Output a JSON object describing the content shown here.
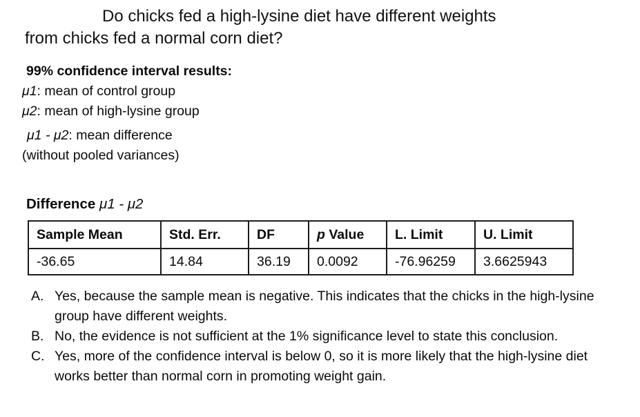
{
  "question": {
    "line1": "Do chicks fed a high-lysine diet have different weights",
    "line2": "from chicks fed a normal corn diet?"
  },
  "results": {
    "heading": "99% confidence interval results:",
    "definitions": [
      {
        "symbol": "μ1",
        "text": ": mean of control group"
      },
      {
        "symbol": "μ2",
        "text": ": mean of high-lysine group"
      },
      {
        "symbol": "μ1 - μ2",
        "text": ": mean difference"
      }
    ],
    "note": "(without pooled variances)"
  },
  "difference": {
    "label_bold": "Difference ",
    "label_symbols": "μ1 - μ2"
  },
  "table": {
    "headers": [
      {
        "italic_prefix": "",
        "label": "Sample Mean"
      },
      {
        "italic_prefix": "",
        "label": "Std. Err."
      },
      {
        "italic_prefix": "",
        "label": "DF"
      },
      {
        "italic_prefix": "p",
        "label": " Value"
      },
      {
        "italic_prefix": "",
        "label": "L. Limit"
      },
      {
        "italic_prefix": "",
        "label": "U. Limit"
      }
    ],
    "values": [
      "-36.65",
      "14.84",
      "36.19",
      "0.0092",
      "-76.96259",
      "3.6625943"
    ]
  },
  "options": [
    {
      "label": "A.",
      "text": "Yes, because the sample mean is negative. This indicates that the chicks in the high-lysine group have different weights."
    },
    {
      "label": "B.",
      "text": "No, the evidence is not sufficient at the 1% significance level to state this conclusion."
    },
    {
      "label": "C.",
      "text": "Yes, more of the confidence interval is below 0, so it is more likely that the high-lysine diet works better than normal corn in promoting weight gain."
    }
  ],
  "colors": {
    "text": "#000000",
    "background": "#ffffff",
    "table_border": "#1c1c1c"
  }
}
